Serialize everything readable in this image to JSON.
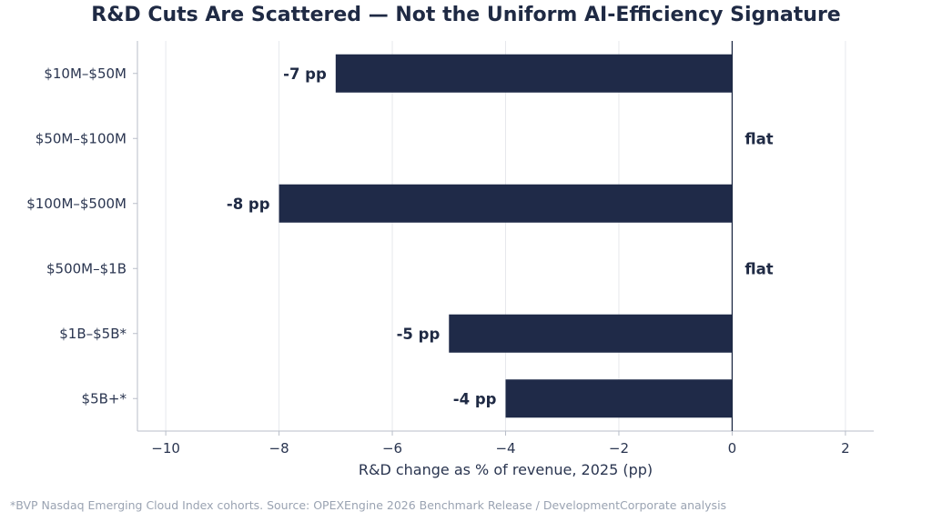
{
  "chart_data": {
    "type": "bar",
    "orientation": "horizontal",
    "title": "R&D Cuts Are Scattered — Not the Uniform AI-Efficiency Signature",
    "xlabel": "R&D change as % of revenue, 2025 (pp)",
    "ylabel": "",
    "categories": [
      "$10M–$50M",
      "$50M–$100M",
      "$100M–$500M",
      "$500M–$1B",
      "$1B–$5B*",
      "$5B+*"
    ],
    "values": [
      -7,
      0,
      -8,
      0,
      -5,
      -4
    ],
    "data_labels": [
      "-7 pp",
      "flat",
      "-8 pp",
      "flat",
      "-5 pp",
      "-4 pp"
    ],
    "xlim": [
      -10.5,
      2.5
    ],
    "xticks": [
      -10,
      -8,
      -6,
      -4,
      -2,
      0,
      2
    ],
    "xtick_labels": [
      "−10",
      "−8",
      "−6",
      "−4",
      "−2",
      "0",
      "2"
    ],
    "grid": "vertical",
    "bar_color": "#1f2a48",
    "zero_line_color": "#1f2a44"
  },
  "footnote": "*BVP Nasdaq Emerging Cloud Index cohorts. Source: OPEXEngine 2026 Benchmark Release / DevelopmentCorporate analysis"
}
